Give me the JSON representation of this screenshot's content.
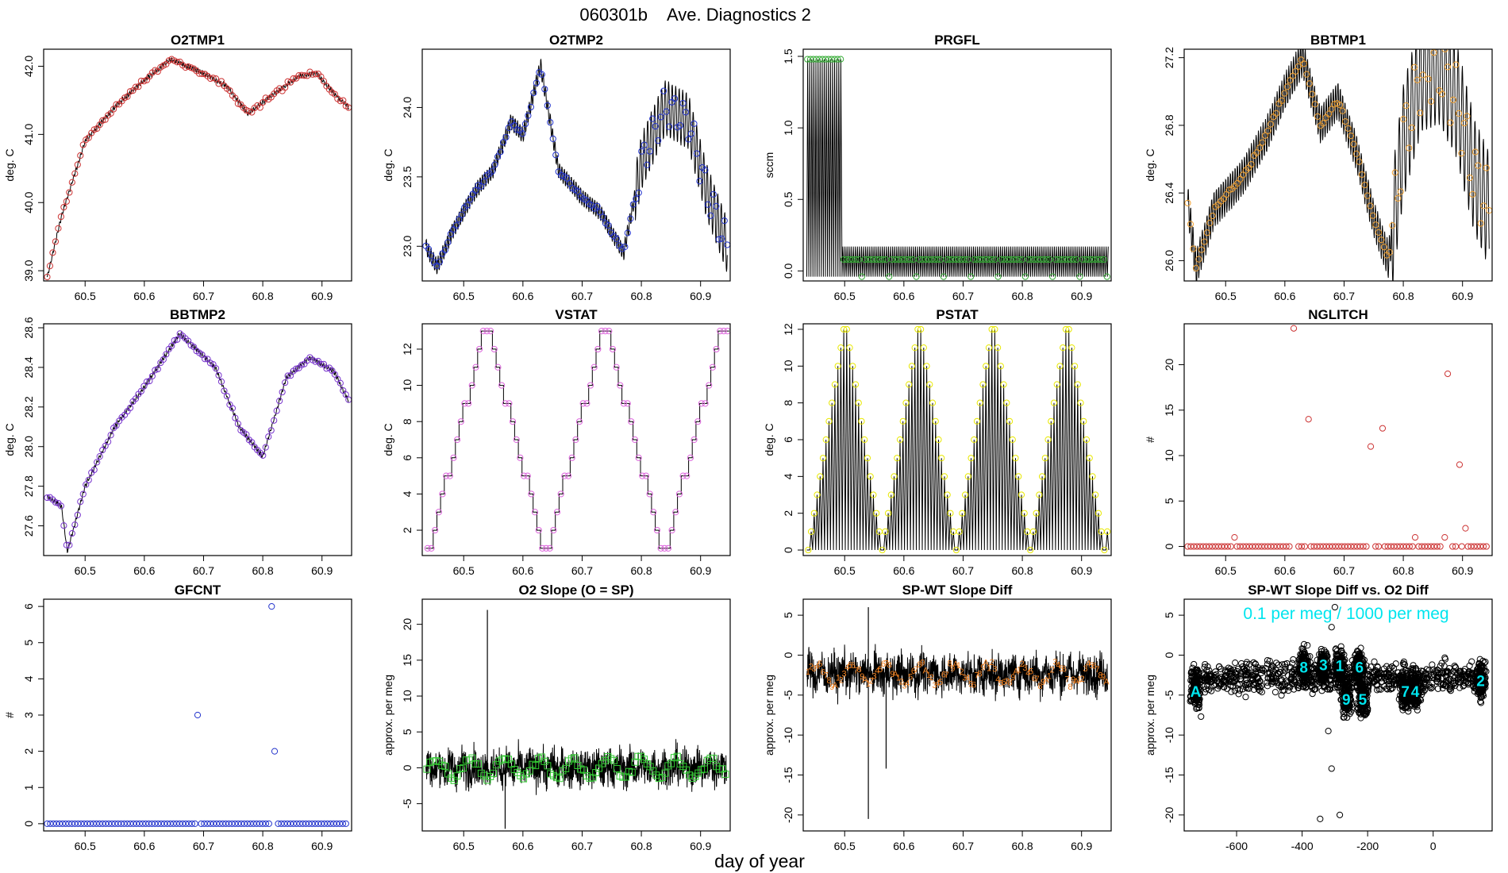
{
  "figure": {
    "title_id": "060301b",
    "title_text": "Ave. Diagnostics 2",
    "xlabel": "day of year"
  },
  "chart_data": [
    {
      "type": "line",
      "title": "O2TMP1",
      "ylabel": "deg. C",
      "xlim": [
        60.43,
        60.95
      ],
      "ylim": [
        38.85,
        42.25
      ],
      "xticks": [
        60.5,
        60.6,
        60.7,
        60.8,
        60.9
      ],
      "yticks": [
        39.0,
        40.0,
        41.0,
        42.0
      ],
      "marker_color": "#cc3333",
      "series": [
        {
          "name": "O2TMP1",
          "anchors_x": [
            60.436,
            60.46,
            60.5,
            60.55,
            60.6,
            60.645,
            60.7,
            60.74,
            60.775,
            60.82,
            60.86,
            60.89,
            60.92,
            60.945
          ],
          "anchors_y": [
            38.9,
            39.8,
            40.9,
            41.4,
            41.8,
            42.1,
            41.9,
            41.7,
            41.3,
            41.6,
            41.85,
            41.9,
            41.6,
            41.4
          ]
        }
      ]
    },
    {
      "type": "line",
      "title": "O2TMP2",
      "ylabel": "deg. C",
      "xlim": [
        60.43,
        60.95
      ],
      "ylim": [
        22.75,
        24.42
      ],
      "xticks": [
        60.5,
        60.6,
        60.7,
        60.8,
        60.9
      ],
      "yticks": [
        23.0,
        23.5,
        24.0
      ],
      "marker_color": "#2233cc",
      "series": [
        {
          "name": "O2TMP2",
          "anchors_x": [
            60.436,
            60.455,
            60.48,
            60.52,
            60.55,
            60.58,
            60.6,
            60.63,
            60.66,
            60.7,
            60.73,
            60.77,
            60.8,
            60.84,
            60.88,
            60.91,
            60.945
          ],
          "anchors_y": [
            23.0,
            22.85,
            23.1,
            23.4,
            23.55,
            23.9,
            23.8,
            24.3,
            23.55,
            23.35,
            23.25,
            22.95,
            23.6,
            24.0,
            23.9,
            23.4,
            23.0
          ]
        }
      ]
    },
    {
      "type": "line",
      "title": "PRGFL",
      "ylabel": "sccm",
      "xlim": [
        60.43,
        60.95
      ],
      "ylim": [
        -0.07,
        1.55
      ],
      "xticks": [
        60.5,
        60.6,
        60.7,
        60.8,
        60.9
      ],
      "yticks": [
        0.0,
        0.5,
        1.0,
        1.5
      ],
      "marker_color": "#33aa33",
      "series": [
        {
          "name": "PRGFL",
          "high_before": 60.495,
          "high_value": 1.48,
          "low_value": 0.08
        }
      ]
    },
    {
      "type": "line",
      "title": "BBTMP1",
      "ylabel": "deg. C",
      "xlim": [
        60.43,
        60.95
      ],
      "ylim": [
        25.88,
        27.25
      ],
      "xticks": [
        60.5,
        60.6,
        60.7,
        60.8,
        60.9
      ],
      "yticks": [
        26.0,
        26.4,
        26.8,
        27.2
      ],
      "marker_color": "#f0a030",
      "series": [
        {
          "name": "BBTMP1",
          "anchors_x": [
            60.436,
            60.45,
            60.48,
            60.53,
            60.57,
            60.6,
            60.63,
            60.66,
            60.69,
            60.72,
            60.75,
            60.775,
            60.8,
            60.83,
            60.86,
            60.89,
            60.92,
            60.945
          ],
          "anchors_y": [
            26.35,
            25.95,
            26.3,
            26.5,
            26.75,
            27.0,
            27.2,
            26.8,
            26.95,
            26.65,
            26.25,
            26.0,
            26.7,
            27.1,
            27.15,
            26.95,
            26.5,
            26.3
          ]
        }
      ]
    },
    {
      "type": "line",
      "title": "BBTMP2",
      "ylabel": "deg. C",
      "xlim": [
        60.43,
        60.95
      ],
      "ylim": [
        27.45,
        28.62
      ],
      "xticks": [
        60.5,
        60.6,
        60.7,
        60.8,
        60.9
      ],
      "yticks": [
        27.6,
        27.8,
        28.0,
        28.2,
        28.4,
        28.6
      ],
      "marker_color": "#7733cc",
      "series": [
        {
          "name": "BBTMP2",
          "anchors_x": [
            60.436,
            60.46,
            60.47,
            60.5,
            60.55,
            60.6,
            60.66,
            60.72,
            60.76,
            60.8,
            60.84,
            60.88,
            60.92,
            60.945
          ],
          "anchors_y": [
            27.75,
            27.7,
            27.47,
            27.8,
            28.1,
            28.3,
            28.57,
            28.4,
            28.1,
            27.95,
            28.35,
            28.45,
            28.38,
            28.23
          ]
        }
      ]
    },
    {
      "type": "step",
      "title": "VSTAT",
      "ylabel": "deg. C",
      "xlim": [
        60.43,
        60.95
      ],
      "ylim": [
        0.6,
        13.4
      ],
      "xticks": [
        60.5,
        60.6,
        60.7,
        60.8,
        60.9
      ],
      "yticks": [
        2,
        4,
        6,
        8,
        10,
        12
      ],
      "marker_color": "#dd66dd",
      "series": [
        {
          "name": "VSTAT",
          "start": 60.436,
          "step": 0.00625,
          "min": 1,
          "max": 13,
          "period_steps": 32
        }
      ]
    },
    {
      "type": "step",
      "title": "PSTAT",
      "ylabel": "deg. C",
      "xlim": [
        60.43,
        60.95
      ],
      "ylim": [
        -0.3,
        12.3
      ],
      "xticks": [
        60.5,
        60.6,
        60.7,
        60.8,
        60.9
      ],
      "yticks": [
        0,
        2,
        4,
        6,
        8,
        10,
        12
      ],
      "marker_color": "#e8e800",
      "series": [
        {
          "name": "PSTAT",
          "start": 60.436,
          "step": 0.005,
          "max": 12,
          "period_steps": 25
        }
      ]
    },
    {
      "type": "scatter",
      "title": "NGLITCH",
      "ylabel": "#",
      "xlim": [
        60.43,
        60.95
      ],
      "ylim": [
        -1,
        24.5
      ],
      "xticks": [
        60.5,
        60.6,
        60.7,
        60.8,
        60.9
      ],
      "yticks": [
        0,
        5,
        10,
        15,
        20
      ],
      "marker_color": "#cc3333",
      "series": [
        {
          "name": "NGLITCH",
          "x_start": 60.436,
          "x_step": 0.0052,
          "x_end": 60.945,
          "base": 0,
          "spikes": [
            [
              60.515,
              1
            ],
            [
              60.615,
              24
            ],
            [
              60.64,
              14
            ],
            [
              60.745,
              11
            ],
            [
              60.765,
              13
            ],
            [
              60.82,
              1
            ],
            [
              60.87,
              1
            ],
            [
              60.875,
              19
            ],
            [
              60.895,
              9
            ],
            [
              60.905,
              2
            ]
          ]
        }
      ]
    },
    {
      "type": "scatter",
      "title": "GFCNT",
      "ylabel": "#",
      "xlim": [
        60.43,
        60.95
      ],
      "ylim": [
        -0.2,
        6.2
      ],
      "xticks": [
        60.5,
        60.6,
        60.7,
        60.8,
        60.9
      ],
      "yticks": [
        0,
        1,
        2,
        3,
        4,
        5,
        6
      ],
      "marker_color": "#2233cc",
      "series": [
        {
          "name": "GFCNT",
          "x_start": 60.436,
          "x_step": 0.0052,
          "x_end": 60.945,
          "base": 0,
          "spikes": [
            [
              60.69,
              3
            ],
            [
              60.815,
              6
            ],
            [
              60.82,
              2
            ]
          ]
        }
      ]
    },
    {
      "type": "line",
      "title": "O2 Slope (O = SP)",
      "ylabel": "approx. per meg",
      "xlim": [
        60.43,
        60.95
      ],
      "ylim": [
        -8.8,
        23.5
      ],
      "xticks": [
        60.5,
        60.6,
        60.7,
        60.8,
        60.9
      ],
      "yticks": [
        -5,
        0,
        5,
        10,
        15,
        20
      ],
      "marker_color": "#33cc33",
      "series": [
        {
          "name": "O2 Slope",
          "mean": 0,
          "spread": 4.5,
          "spikes": [
            [
              60.54,
              22
            ],
            [
              60.57,
              -8.5
            ]
          ]
        }
      ]
    },
    {
      "type": "line",
      "title": "SP-WT Slope Diff",
      "ylabel": "approx. per meg",
      "xlim": [
        60.43,
        60.95
      ],
      "ylim": [
        -22,
        7
      ],
      "xticks": [
        60.5,
        60.6,
        60.7,
        60.8,
        60.9
      ],
      "yticks": [
        -20,
        -15,
        -10,
        -5,
        0,
        5
      ],
      "marker_color": "#f08020",
      "series": [
        {
          "name": "SP-WT Slope Diff",
          "mean": -2.3,
          "spread": 4.5,
          "spikes": [
            [
              60.54,
              6
            ],
            [
              60.54,
              -20.5
            ],
            [
              60.57,
              -14.2
            ]
          ]
        }
      ]
    },
    {
      "type": "scatter",
      "title": "SP-WT Slope Diff vs. O2 Diff",
      "ylabel": "approx. per meg",
      "annotation": "0.1 per meg / 1000 per meg",
      "xlim": [
        -760,
        180
      ],
      "ylim": [
        -22,
        7
      ],
      "xticks": [
        -600,
        -400,
        -200,
        0
      ],
      "yticks": [
        -20,
        -15,
        -10,
        -5,
        0,
        5
      ],
      "label_color": "#00e5ee",
      "clusters": [
        [
          -725,
          -4.5,
          "A"
        ],
        [
          -395,
          -1.5,
          "8"
        ],
        [
          -335,
          -1.2,
          "3"
        ],
        [
          -285,
          -1.3,
          "1"
        ],
        [
          -225,
          -1.5,
          "6"
        ],
        [
          -265,
          -5.5,
          "9"
        ],
        [
          -215,
          -5.5,
          "5"
        ],
        [
          -85,
          -4.5,
          "7"
        ],
        [
          -55,
          -4.5,
          "4"
        ],
        [
          145,
          -3.2,
          "2"
        ]
      ],
      "outliers": [
        [
          -345,
          -20.5
        ],
        [
          -285,
          -20
        ],
        [
          -310,
          -14.2
        ],
        [
          -320,
          -9.5
        ],
        [
          -300,
          6
        ],
        [
          -310,
          3.5
        ]
      ]
    }
  ]
}
